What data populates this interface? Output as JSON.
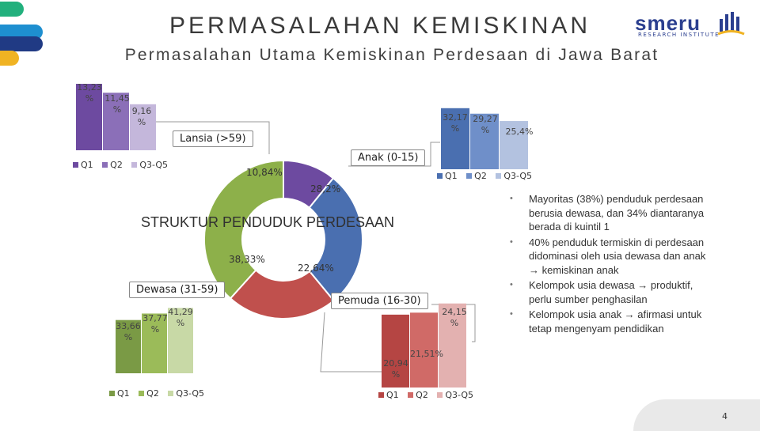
{
  "header": {
    "title": "PERMASALAHAN KEMISKINAN",
    "subtitle": "Permasalahan Utama Kemiskinan Perdesaan di Jawa Barat",
    "logo": {
      "word": "smeru",
      "tagline": "RESEARCH INSTITUTE",
      "icon": "bar-chart-logo-icon"
    }
  },
  "decor": {
    "tab_colors": [
      "#22b07d",
      "#1e8fd0",
      "#203a84",
      "#f0b323"
    ]
  },
  "donut": {
    "title": "STRUKTUR PENDUDUK PERDESAAN",
    "segments": [
      {
        "label": "Lansia (>59)",
        "value": 10.84,
        "value_label": "10,84%",
        "color": "#6d4aa0"
      },
      {
        "label": "Anak (0-15)",
        "value": 28.2,
        "value_label": "28,2%",
        "color": "#4a6fb0"
      },
      {
        "label": "Pemuda (16-30)",
        "value": 22.64,
        "value_label": "22,64%",
        "color": "#c0504d"
      },
      {
        "label": "Dewasa (31-59)",
        "value": 38.33,
        "value_label": "38,33%",
        "color": "#8db04a"
      }
    ]
  },
  "chart_data": [
    {
      "type": "bar",
      "group": "Lansia (>59)",
      "categories": [
        "Q1",
        "Q2",
        "Q3-Q5"
      ],
      "values": [
        13.23,
        11.45,
        9.16
      ],
      "value_labels": [
        "13,23 %",
        "11,45 %",
        "9,16 %"
      ],
      "colors": [
        "#6d4aa0",
        "#8b6fb8",
        "#c4b7db"
      ]
    },
    {
      "type": "bar",
      "group": "Anak (0-15)",
      "categories": [
        "Q1",
        "Q2",
        "Q3-Q5"
      ],
      "values": [
        32.17,
        29.27,
        25.4
      ],
      "value_labels": [
        "32,17 %",
        "29,27 %",
        "25,4%"
      ],
      "colors": [
        "#4a6fb0",
        "#6f8fc9",
        "#b3c2e0"
      ]
    },
    {
      "type": "bar",
      "group": "Dewasa (31-59)",
      "categories": [
        "Q1",
        "Q2",
        "Q3-Q5"
      ],
      "values": [
        33.66,
        37.77,
        41.29
      ],
      "value_labels": [
        "33,66 %",
        "37,77 %",
        "41,29 %"
      ],
      "colors": [
        "#7a9a45",
        "#9bbb59",
        "#c8d9a6"
      ]
    },
    {
      "type": "bar",
      "group": "Pemuda (16-30)",
      "categories": [
        "Q1",
        "Q2",
        "Q3-Q5"
      ],
      "values": [
        20.94,
        21.51,
        24.15
      ],
      "value_labels": [
        "20,94 %",
        "21,51%",
        "24,15 %"
      ],
      "colors": [
        "#b54543",
        "#d06a67",
        "#e3b1b0"
      ]
    }
  ],
  "bullets": [
    "Mayoritas (38%) penduduk perdesaan berusia dewasa, dan 34% diantaranya berada di kuintil 1",
    "40% penduduk termiskin di perdesaan didominasi oleh usia dewasa dan anak → kemiskinan anak",
    "Kelompok usia dewasa → produktif, perlu sumber penghasilan",
    "Kelompok usia anak → afirmasi untuk tetap mengenyam pendidikan"
  ],
  "footer": {
    "page_number": "4"
  }
}
